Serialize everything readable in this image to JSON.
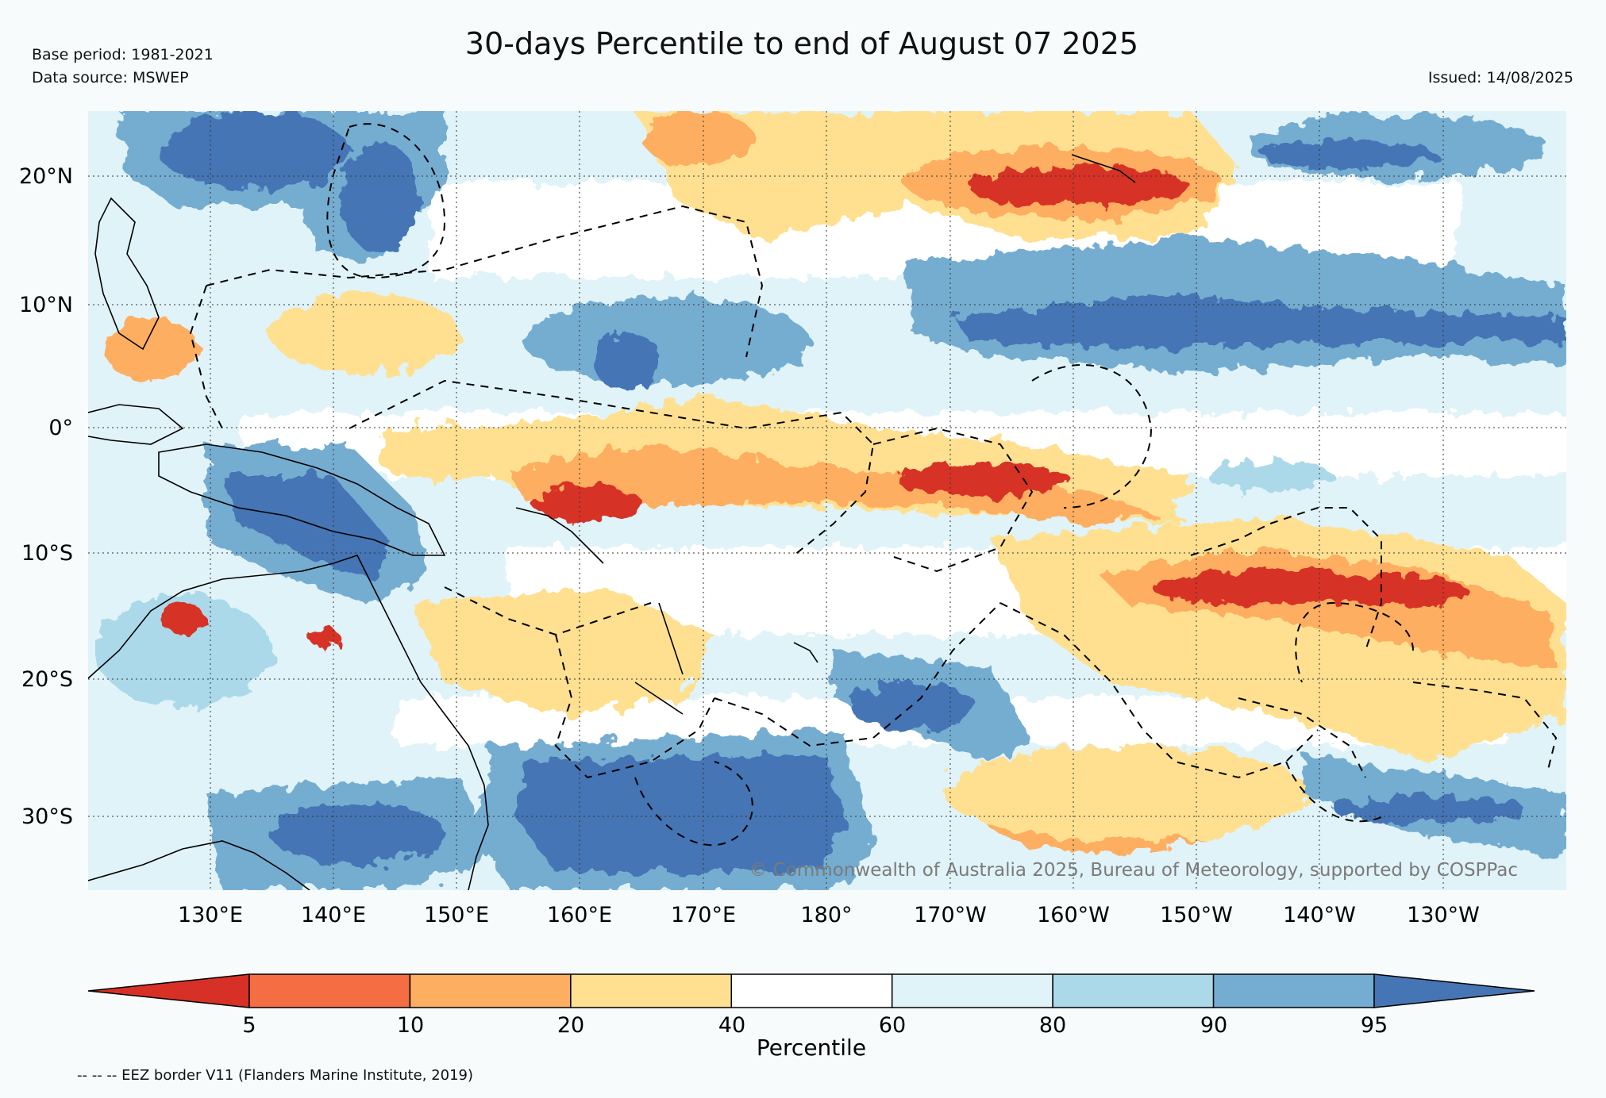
{
  "header": {
    "title": "30-days Percentile to end of August 07 2025",
    "base_period": "Base period: 1981-2021",
    "data_source": "Data source: MSWEP",
    "issued": "Issued: 14/08/2025"
  },
  "map": {
    "lon_labels": [
      "130°E",
      "140°E",
      "150°E",
      "160°E",
      "170°E",
      "180°",
      "170°W",
      "160°W",
      "150°W",
      "140°W",
      "130°W"
    ],
    "lat_labels": [
      "20°N",
      "10°N",
      "0°",
      "10°S",
      "20°S",
      "30°S"
    ],
    "copyright": "© Commonwealth of Australia 2025, Bureau of Meteorology, supported by COSPPac"
  },
  "colorbar": {
    "label": "Percentile",
    "ticks": [
      "5",
      "10",
      "20",
      "40",
      "60",
      "80",
      "90",
      "95"
    ],
    "colors": [
      "#d73027",
      "#f46d43",
      "#fdae61",
      "#fee090",
      "#ffffff",
      "#e0f3f8",
      "#abd9e9",
      "#74add1",
      "#4575b4"
    ]
  },
  "footer": {
    "eez_note": "-- -- -- EEZ border V11 (Flanders Marine Institute, 2019)"
  }
}
